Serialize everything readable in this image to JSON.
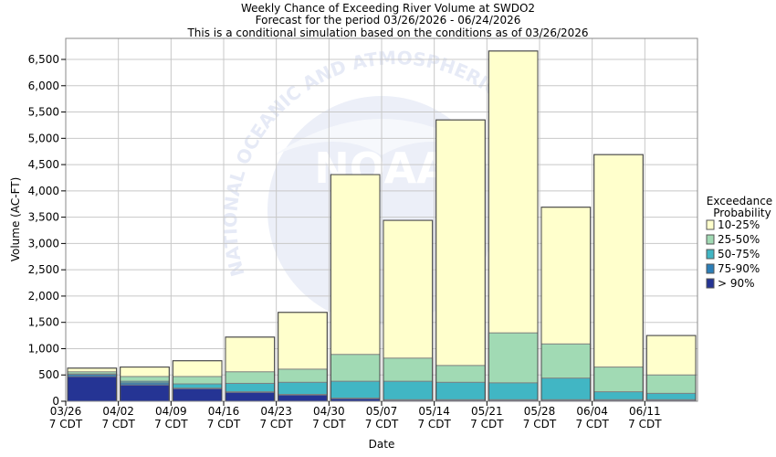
{
  "title_lines": [
    "Weekly Chance of Exceeding River Volume at SWDO2",
    "Forecast for the period 03/26/2026 - 06/24/2026",
    "This is a conditional simulation based on the conditions as of 03/26/2026"
  ],
  "watermark": {
    "arc_text": "NATIONAL OCEANIC AND ATMOSPHERIC",
    "logo_text": "NOAA"
  },
  "colors": {
    "band_10_25": "#ffffcc",
    "band_25_50": "#a1dab4",
    "band_50_75": "#41b6c4",
    "band_75_90": "#2c7fb8",
    "band_gt_90": "#253494"
  },
  "chart_data": {
    "type": "bar",
    "stacked": true,
    "xlabel": "Date",
    "ylabel": "Volume (AC-FT)",
    "ylim": [
      0,
      6900
    ],
    "y_ticks": [
      0,
      500,
      1000,
      1500,
      2000,
      2500,
      3000,
      3500,
      4000,
      4500,
      5000,
      5500,
      6000,
      6500
    ],
    "y_tick_labels": [
      "0",
      "500",
      "1,000",
      "1,500",
      "2,000",
      "2,500",
      "3,000",
      "3,500",
      "4,000",
      "4,500",
      "5,000",
      "5,500",
      "6,000",
      "6,500"
    ],
    "grid": true,
    "legend_position": "right",
    "legend_title": [
      "Exceedance",
      "Probability"
    ],
    "categories": [
      "03/26",
      "04/02",
      "04/09",
      "04/16",
      "04/23",
      "04/30",
      "05/07",
      "05/14",
      "05/21",
      "05/28",
      "06/04",
      "06/11"
    ],
    "x_tick_lines": [
      [
        "03/26",
        "7 CDT"
      ],
      [
        "04/02",
        "7 CDT"
      ],
      [
        "04/09",
        "7 CDT"
      ],
      [
        "04/16",
        "7 CDT"
      ],
      [
        "04/23",
        "7 CDT"
      ],
      [
        "04/30",
        "7 CDT"
      ],
      [
        "05/07",
        "7 CDT"
      ],
      [
        "05/14",
        "7 CDT"
      ],
      [
        "05/21",
        "7 CDT"
      ],
      [
        "05/28",
        "7 CDT"
      ],
      [
        "06/04",
        "7 CDT"
      ],
      [
        "06/11",
        "7 CDT"
      ]
    ],
    "series": [
      {
        "name": "> 90%",
        "color_key": "band_gt_90",
        "tops": [
          470,
          310,
          240,
          170,
          120,
          50,
          20,
          20,
          20,
          20,
          20,
          20
        ]
      },
      {
        "name": "75-90%",
        "color_key": "band_75_90",
        "tops": [
          510,
          350,
          250,
          180,
          130,
          60,
          30,
          30,
          30,
          30,
          30,
          30
        ]
      },
      {
        "name": "50-75%",
        "color_key": "band_50_75",
        "tops": [
          520,
          380,
          330,
          340,
          360,
          380,
          380,
          360,
          350,
          440,
          180,
          150
        ]
      },
      {
        "name": "25-50%",
        "color_key": "band_25_50",
        "tops": [
          560,
          470,
          470,
          560,
          610,
          890,
          820,
          680,
          1300,
          1090,
          650,
          500
        ]
      },
      {
        "name": "10-25%",
        "color_key": "band_10_25",
        "tops": [
          630,
          650,
          770,
          1220,
          1690,
          4310,
          3440,
          5350,
          6660,
          3690,
          4690,
          1250
        ]
      }
    ],
    "legend_order": [
      "10-25%",
      "25-50%",
      "50-75%",
      "75-90%",
      "> 90%"
    ]
  }
}
